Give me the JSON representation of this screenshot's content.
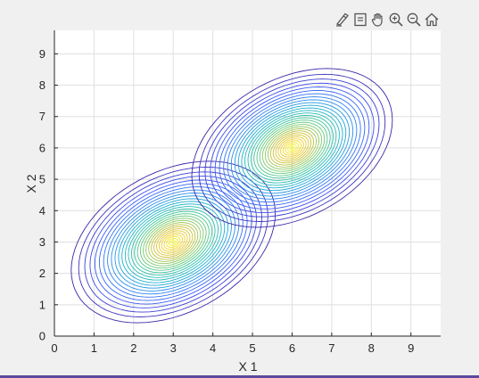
{
  "toolbar": {
    "buttons": [
      {
        "id": "brush",
        "icon": "brush-icon"
      },
      {
        "id": "datatip",
        "icon": "datatip-icon"
      },
      {
        "id": "pan",
        "icon": "pan-hand-icon"
      },
      {
        "id": "zoom-in",
        "icon": "zoom-in-icon"
      },
      {
        "id": "zoom-out",
        "icon": "zoom-out-icon"
      },
      {
        "id": "home",
        "icon": "home-icon"
      }
    ]
  },
  "colors": {
    "background": "#f0f0f0",
    "axes": "#ffffff",
    "grid": "#dfdfdf",
    "axis_line": "#262626",
    "colormap": [
      "#3e26a8",
      "#3d54f8",
      "#2e85f3",
      "#1bafd2",
      "#31c4a3",
      "#7bcb6c",
      "#c9c035",
      "#f2cf2e",
      "#f9fb15"
    ]
  },
  "chart_data": {
    "type": "contour",
    "title": "",
    "xlabel": "X 1",
    "ylabel": "X 2",
    "xlim": [
      0,
      9.75
    ],
    "ylim": [
      0,
      9.75
    ],
    "xticks": [
      0,
      1,
      2,
      3,
      4,
      5,
      6,
      7,
      8,
      9
    ],
    "yticks": [
      0,
      1,
      2,
      3,
      4,
      5,
      6,
      7,
      8,
      9
    ],
    "grid": true,
    "distributions": [
      {
        "mean": [
          3,
          3
        ],
        "sigma_x": 1.0,
        "sigma_y": 1.0,
        "correlation": 0.35,
        "outermost_extent_x": [
          0.15,
          5.9
        ],
        "outermost_extent_y": [
          0.1,
          5.6
        ]
      },
      {
        "mean": [
          6,
          6
        ],
        "sigma_x": 1.0,
        "sigma_y": 1.0,
        "correlation": 0.35,
        "outermost_extent_x": [
          3.2,
          8.85
        ],
        "outermost_extent_y": [
          3.2,
          8.9
        ]
      }
    ],
    "contour_levels": 30
  }
}
